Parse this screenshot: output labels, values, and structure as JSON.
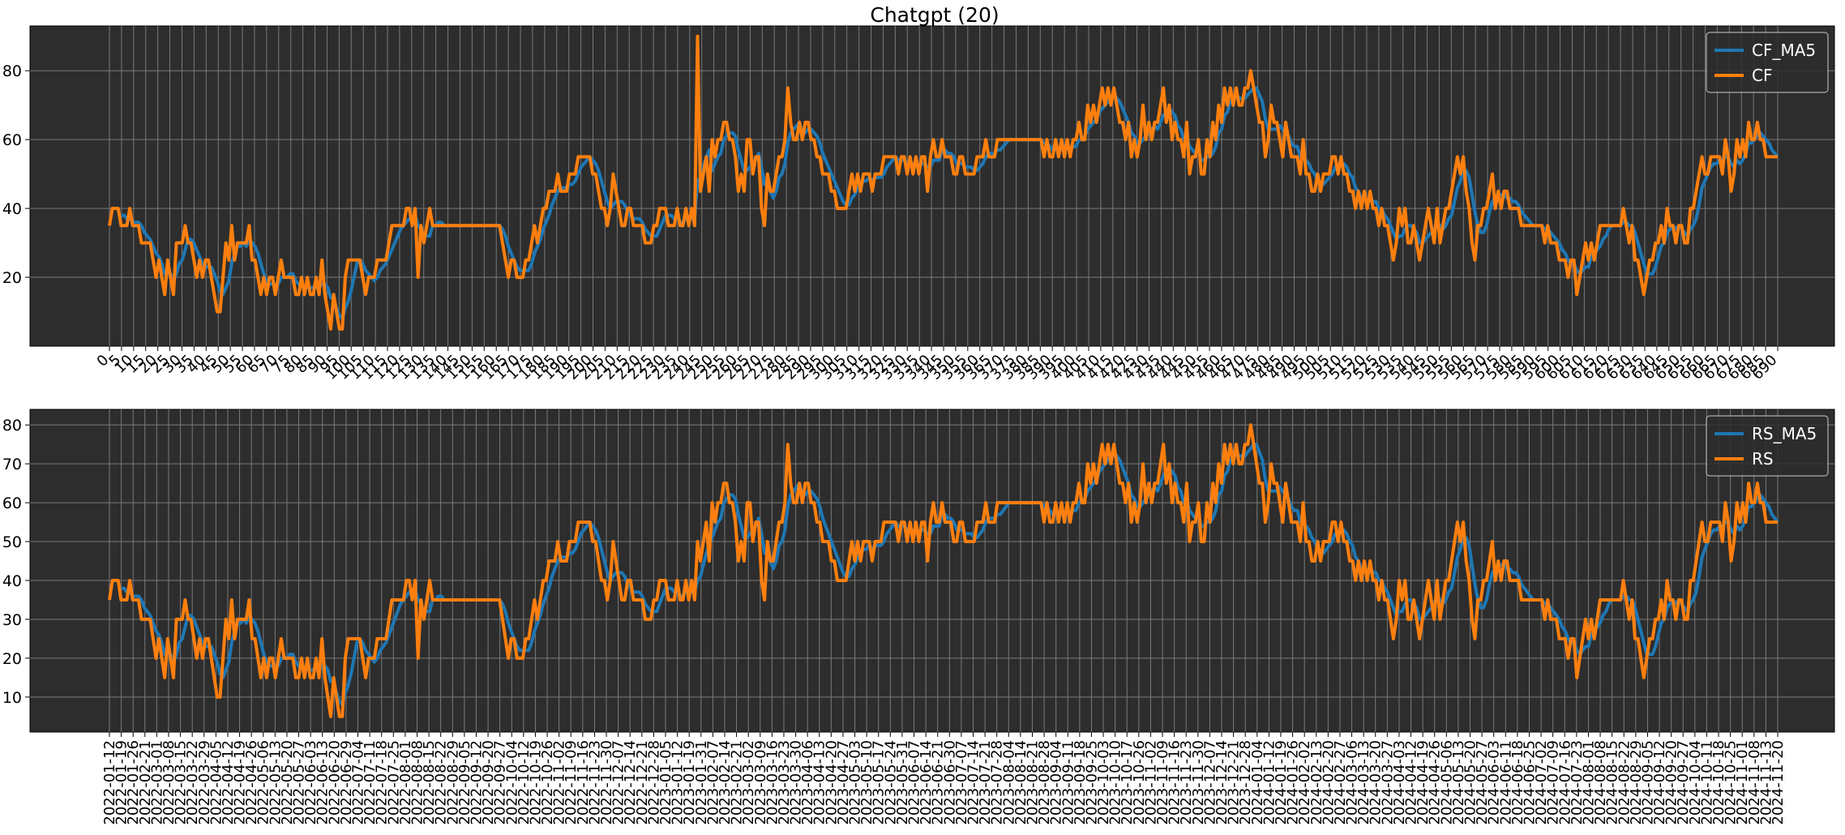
{
  "figure": {
    "title": "Chatgpt (20)"
  },
  "chart_data": [
    {
      "type": "line",
      "name": "top",
      "x_kind": "index",
      "x_range": [
        0,
        690
      ],
      "x_tick_step": 5,
      "ylim": [
        0,
        93
      ],
      "yticks": [
        20,
        40,
        60,
        80
      ],
      "grid": true,
      "legend_position": "top-right",
      "series": [
        {
          "name": "CF_MA5",
          "color": "#1f77b4",
          "smooth": true
        },
        {
          "name": "CF",
          "color": "#ff7f0e",
          "smooth": false
        }
      ],
      "values": [
        35,
        40,
        40,
        40,
        35,
        35,
        35,
        40,
        35,
        35,
        35,
        30,
        30,
        30,
        30,
        25,
        20,
        25,
        20,
        15,
        25,
        20,
        15,
        30,
        30,
        30,
        35,
        30,
        30,
        25,
        20,
        25,
        20,
        25,
        25,
        20,
        15,
        10,
        10,
        20,
        30,
        25,
        35,
        25,
        30,
        30,
        30,
        30,
        35,
        25,
        25,
        20,
        15,
        20,
        15,
        20,
        20,
        15,
        20,
        25,
        20,
        20,
        20,
        20,
        15,
        15,
        20,
        15,
        20,
        15,
        15,
        20,
        15,
        25,
        15,
        10,
        5,
        15,
        10,
        5,
        5,
        20,
        25,
        25,
        25,
        25,
        25,
        20,
        15,
        20,
        20,
        20,
        25,
        25,
        25,
        25,
        30,
        35,
        35,
        35,
        35,
        35,
        40,
        40,
        35,
        40,
        20,
        35,
        30,
        35,
        40,
        35,
        35,
        35,
        35,
        35,
        35,
        35,
        35,
        35,
        35,
        35,
        35,
        35,
        35,
        35,
        35,
        35,
        35,
        35,
        35,
        35,
        35,
        35,
        35,
        30,
        25,
        20,
        25,
        25,
        20,
        20,
        20,
        25,
        25,
        30,
        35,
        30,
        35,
        40,
        40,
        45,
        45,
        45,
        50,
        45,
        45,
        45,
        50,
        50,
        50,
        55,
        55,
        55,
        55,
        55,
        50,
        50,
        45,
        40,
        40,
        35,
        40,
        50,
        45,
        40,
        35,
        35,
        40,
        40,
        35,
        35,
        35,
        35,
        30,
        30,
        30,
        35,
        35,
        40,
        40,
        40,
        35,
        35,
        35,
        40,
        35,
        35,
        40,
        35,
        40,
        35,
        90,
        45,
        50,
        55,
        45,
        60,
        55,
        60,
        60,
        65,
        65,
        60,
        60,
        55,
        45,
        50,
        45,
        60,
        60,
        50,
        55,
        55,
        40,
        35,
        50,
        45,
        45,
        50,
        55,
        55,
        60,
        75,
        65,
        60,
        60,
        65,
        60,
        65,
        65,
        60,
        60,
        55,
        55,
        50,
        50,
        50,
        45,
        45,
        40,
        40,
        40,
        40,
        45,
        50,
        45,
        50,
        45,
        50,
        50,
        50,
        45,
        50,
        50,
        50,
        55,
        55,
        55,
        55,
        55,
        50,
        55,
        55,
        50,
        55,
        50,
        55,
        50,
        55,
        55,
        45,
        55,
        60,
        55,
        55,
        60,
        55,
        55,
        55,
        50,
        50,
        55,
        55,
        50,
        50,
        50,
        50,
        55,
        55,
        55,
        60,
        55,
        55,
        55,
        60,
        60,
        60,
        60,
        60,
        60,
        60,
        60,
        60,
        60,
        60,
        60,
        60,
        60,
        60,
        60,
        55,
        60,
        55,
        55,
        60,
        55,
        60,
        55,
        60,
        55,
        60,
        60,
        65,
        60,
        60,
        70,
        65,
        70,
        65,
        70,
        75,
        70,
        75,
        70,
        75,
        70,
        65,
        65,
        60,
        65,
        55,
        60,
        55,
        60,
        70,
        60,
        65,
        60,
        65,
        65,
        70,
        75,
        65,
        70,
        60,
        65,
        60,
        60,
        55,
        65,
        50,
        55,
        55,
        60,
        50,
        50,
        60,
        55,
        65,
        60,
        70,
        65,
        75,
        70,
        75,
        70,
        75,
        70,
        70,
        75,
        75,
        80,
        75,
        70,
        65,
        65,
        55,
        60,
        70,
        65,
        65,
        60,
        55,
        65,
        60,
        55,
        55,
        55,
        50,
        60,
        50,
        50,
        45,
        45,
        50,
        45,
        50,
        50,
        50,
        55,
        55,
        50,
        55,
        50,
        50,
        45,
        45,
        40,
        45,
        40,
        45,
        40,
        45,
        40,
        40,
        35,
        40,
        35,
        35,
        30,
        25,
        30,
        40,
        35,
        40,
        30,
        30,
        35,
        30,
        25,
        30,
        35,
        40,
        35,
        30,
        40,
        30,
        35,
        40,
        40,
        45,
        50,
        55,
        50,
        55,
        45,
        40,
        30,
        25,
        35,
        35,
        40,
        40,
        45,
        50,
        40,
        45,
        40,
        45,
        45,
        40,
        40,
        40,
        40,
        35,
        35,
        35,
        35,
        35,
        35,
        35,
        35,
        30,
        35,
        30,
        30,
        30,
        25,
        25,
        25,
        20,
        25,
        25,
        15,
        20,
        25,
        30,
        25,
        30,
        25,
        30,
        35,
        35,
        35,
        35,
        35,
        35,
        35,
        35,
        40,
        35,
        30,
        35,
        25,
        25,
        20,
        15,
        20,
        25,
        25,
        30,
        30,
        35,
        30,
        40,
        35,
        35,
        30,
        35,
        35,
        30,
        30,
        40,
        40,
        45,
        50,
        55,
        50,
        50,
        55,
        55,
        55,
        55,
        50,
        60,
        55,
        45,
        50,
        60,
        55,
        60,
        55,
        65,
        60,
        60,
        65,
        60,
        60,
        55,
        55,
        55,
        55,
        55
      ]
    },
    {
      "type": "line",
      "name": "bottom",
      "x_kind": "dates",
      "x_tick_labels": [
        "2022-01-12",
        "2022-01-19",
        "2022-01-26",
        "2022-02-21",
        "2022-03-01",
        "2022-03-08",
        "2022-03-15",
        "2022-03-22",
        "2022-03-29",
        "2022-04-05",
        "2022-04-12",
        "2022-04-19",
        "2022-04-26",
        "2022-05-06",
        "2022-05-13",
        "2022-05-20",
        "2022-05-27",
        "2022-06-03",
        "2022-06-13",
        "2022-06-20",
        "2022-06-29",
        "2022-07-04",
        "2022-07-11",
        "2022-07-18",
        "2022-07-25",
        "2022-08-01",
        "2022-08-08",
        "2022-08-15",
        "2022-08-22",
        "2022-08-29",
        "2022-09-05",
        "2022-09-12",
        "2022-09-20",
        "2022-09-27",
        "2022-10-04",
        "2022-10-12",
        "2022-10-19",
        "2022-10-26",
        "2022-11-02",
        "2022-11-09",
        "2022-11-16",
        "2022-11-23",
        "2022-11-30",
        "2022-12-07",
        "2022-12-14",
        "2022-12-21",
        "2022-12-28",
        "2023-01-05",
        "2023-01-12",
        "2023-01-19",
        "2023-01-31",
        "2023-02-07",
        "2023-02-14",
        "2023-02-21",
        "2023-03-02",
        "2023-03-09",
        "2023-03-16",
        "2023-03-23",
        "2023-03-30",
        "2023-04-06",
        "2023-04-13",
        "2023-04-20",
        "2023-04-27",
        "2023-05-03",
        "2023-05-10",
        "2023-05-17",
        "2023-05-24",
        "2023-05-31",
        "2023-06-07",
        "2023-06-14",
        "2023-06-21",
        "2023-06-30",
        "2023-07-07",
        "2023-07-14",
        "2023-07-21",
        "2023-07-28",
        "2023-08-04",
        "2023-08-14",
        "2023-08-21",
        "2023-08-28",
        "2023-09-04",
        "2023-09-11",
        "2023-09-18",
        "2023-09-25",
        "2023-10-03",
        "2023-10-10",
        "2023-10-17",
        "2023-10-26",
        "2023-11-02",
        "2023-11-09",
        "2023-11-16",
        "2023-11-23",
        "2023-11-30",
        "2023-12-07",
        "2023-12-14",
        "2023-12-21",
        "2023-12-28",
        "2024-01-04",
        "2024-01-12",
        "2024-01-19",
        "2024-01-26",
        "2024-02-02",
        "2024-02-13",
        "2024-02-20",
        "2024-02-27",
        "2024-03-06",
        "2024-03-13",
        "2024-03-20",
        "2024-03-27",
        "2024-04-03",
        "2024-04-12",
        "2024-04-19",
        "2024-04-26",
        "2024-05-06",
        "2024-05-13",
        "2024-05-20",
        "2024-05-27",
        "2024-06-03",
        "2024-06-11",
        "2024-06-18",
        "2024-06-25",
        "2024-07-02",
        "2024-07-09",
        "2024-07-16",
        "2024-07-23",
        "2024-08-01",
        "2024-08-08",
        "2024-08-15",
        "2024-08-22",
        "2024-08-29",
        "2024-09-05",
        "2024-09-12",
        "2024-09-20",
        "2024-09-27",
        "2024-10-04",
        "2024-10-11",
        "2024-10-18",
        "2024-10-25",
        "2024-11-01",
        "2024-11-08",
        "2024-11-13",
        "2024-11-20"
      ],
      "ylim": [
        1,
        84
      ],
      "yticks": [
        10,
        20,
        30,
        40,
        50,
        60,
        70,
        80
      ],
      "grid": true,
      "legend_position": "top-right",
      "series": [
        {
          "name": "RS_MA5",
          "color": "#1f77b4",
          "smooth": true
        },
        {
          "name": "RS",
          "color": "#ff7f0e",
          "smooth": false
        }
      ],
      "values": [
        35,
        40,
        40,
        40,
        35,
        35,
        35,
        40,
        35,
        35,
        35,
        30,
        30,
        30,
        30,
        25,
        20,
        25,
        20,
        15,
        25,
        20,
        15,
        30,
        30,
        30,
        35,
        30,
        30,
        25,
        20,
        25,
        20,
        25,
        25,
        20,
        15,
        10,
        10,
        20,
        30,
        25,
        35,
        25,
        30,
        30,
        30,
        30,
        35,
        25,
        25,
        20,
        15,
        20,
        15,
        20,
        20,
        15,
        20,
        25,
        20,
        20,
        20,
        20,
        15,
        15,
        20,
        15,
        20,
        15,
        15,
        20,
        15,
        25,
        15,
        10,
        5,
        15,
        10,
        5,
        5,
        20,
        25,
        25,
        25,
        25,
        25,
        20,
        15,
        20,
        20,
        20,
        25,
        25,
        25,
        25,
        30,
        35,
        35,
        35,
        35,
        35,
        40,
        40,
        35,
        40,
        20,
        35,
        30,
        35,
        40,
        35,
        35,
        35,
        35,
        35,
        35,
        35,
        35,
        35,
        35,
        35,
        35,
        35,
        35,
        35,
        35,
        35,
        35,
        35,
        35,
        35,
        35,
        35,
        35,
        30,
        25,
        20,
        25,
        25,
        20,
        20,
        20,
        25,
        25,
        30,
        35,
        30,
        35,
        40,
        40,
        45,
        45,
        45,
        50,
        45,
        45,
        45,
        50,
        50,
        50,
        55,
        55,
        55,
        55,
        55,
        50,
        50,
        45,
        40,
        40,
        35,
        40,
        50,
        45,
        40,
        35,
        35,
        40,
        40,
        35,
        35,
        35,
        35,
        30,
        30,
        30,
        35,
        35,
        40,
        40,
        40,
        35,
        35,
        35,
        40,
        35,
        35,
        40,
        35,
        40,
        35,
        50,
        45,
        50,
        55,
        45,
        60,
        55,
        60,
        60,
        65,
        65,
        60,
        60,
        55,
        45,
        50,
        45,
        60,
        60,
        50,
        55,
        55,
        40,
        35,
        50,
        45,
        45,
        50,
        55,
        55,
        60,
        75,
        65,
        60,
        60,
        65,
        60,
        65,
        65,
        60,
        60,
        55,
        55,
        50,
        50,
        50,
        45,
        45,
        40,
        40,
        40,
        40,
        45,
        50,
        45,
        50,
        45,
        50,
        50,
        50,
        45,
        50,
        50,
        50,
        55,
        55,
        55,
        55,
        55,
        50,
        55,
        55,
        50,
        55,
        50,
        55,
        50,
        55,
        55,
        45,
        55,
        60,
        55,
        55,
        60,
        55,
        55,
        55,
        50,
        50,
        55,
        55,
        50,
        50,
        50,
        50,
        55,
        55,
        55,
        60,
        55,
        55,
        55,
        60,
        60,
        60,
        60,
        60,
        60,
        60,
        60,
        60,
        60,
        60,
        60,
        60,
        60,
        60,
        60,
        55,
        60,
        55,
        55,
        60,
        55,
        60,
        55,
        60,
        55,
        60,
        60,
        65,
        60,
        60,
        70,
        65,
        70,
        65,
        70,
        75,
        70,
        75,
        70,
        75,
        70,
        65,
        65,
        60,
        65,
        55,
        60,
        55,
        60,
        70,
        60,
        65,
        60,
        65,
        65,
        70,
        75,
        65,
        70,
        60,
        65,
        60,
        60,
        55,
        65,
        50,
        55,
        55,
        60,
        50,
        50,
        60,
        55,
        65,
        60,
        70,
        65,
        75,
        70,
        75,
        70,
        75,
        70,
        70,
        75,
        75,
        80,
        75,
        70,
        65,
        65,
        55,
        60,
        70,
        65,
        65,
        60,
        55,
        65,
        60,
        55,
        55,
        55,
        50,
        60,
        50,
        50,
        45,
        45,
        50,
        45,
        50,
        50,
        50,
        55,
        55,
        50,
        55,
        50,
        50,
        45,
        45,
        40,
        45,
        40,
        45,
        40,
        45,
        40,
        40,
        35,
        40,
        35,
        35,
        30,
        25,
        30,
        40,
        35,
        40,
        30,
        30,
        35,
        30,
        25,
        30,
        35,
        40,
        35,
        30,
        40,
        30,
        35,
        40,
        40,
        45,
        50,
        55,
        50,
        55,
        45,
        40,
        30,
        25,
        35,
        35,
        40,
        40,
        45,
        50,
        40,
        45,
        40,
        45,
        45,
        40,
        40,
        40,
        40,
        35,
        35,
        35,
        35,
        35,
        35,
        35,
        35,
        30,
        35,
        30,
        30,
        30,
        25,
        25,
        25,
        20,
        25,
        25,
        15,
        20,
        25,
        30,
        25,
        30,
        25,
        30,
        35,
        35,
        35,
        35,
        35,
        35,
        35,
        35,
        40,
        35,
        30,
        35,
        25,
        25,
        20,
        15,
        20,
        25,
        25,
        30,
        30,
        35,
        30,
        40,
        35,
        35,
        30,
        35,
        35,
        30,
        30,
        40,
        40,
        45,
        50,
        55,
        50,
        50,
        55,
        55,
        55,
        55,
        50,
        60,
        55,
        45,
        50,
        60,
        55,
        60,
        55,
        65,
        60,
        60,
        65,
        60,
        60,
        55,
        55,
        55,
        55,
        55
      ]
    }
  ]
}
